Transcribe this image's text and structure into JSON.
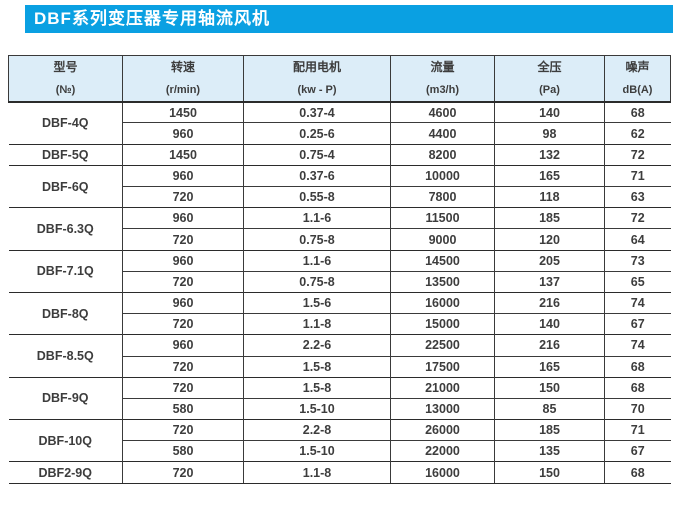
{
  "title": "DBF系列变压器专用轴流风机",
  "colors": {
    "title_bg": "#0aa0e2",
    "header_bg": "#dcedf8",
    "border": "#2b2b2b",
    "text": "#3d3d3d"
  },
  "table": {
    "headers": [
      {
        "line1": "型号",
        "line2": "(№)"
      },
      {
        "line1": "转速",
        "line2": "(r/min)"
      },
      {
        "line1": "配用电机",
        "line2": "(kw - P)"
      },
      {
        "line1": "流量",
        "line2": "(m3/h)"
      },
      {
        "line1": "全压",
        "line2": "(Pa)"
      },
      {
        "line1": "噪声",
        "line2": "dB(A)"
      }
    ],
    "groups": [
      {
        "model": "DBF-4Q",
        "rows": [
          [
            "1450",
            "0.37-4",
            "4600",
            "140",
            "68"
          ],
          [
            "960",
            "0.25-6",
            "4400",
            "98",
            "62"
          ]
        ]
      },
      {
        "model": "DBF-5Q",
        "rows": [
          [
            "1450",
            "0.75-4",
            "8200",
            "132",
            "72"
          ]
        ]
      },
      {
        "model": "DBF-6Q",
        "rows": [
          [
            "960",
            "0.37-6",
            "10000",
            "165",
            "71"
          ],
          [
            "720",
            "0.55-8",
            "7800",
            "118",
            "63"
          ]
        ]
      },
      {
        "model": "DBF-6.3Q",
        "rows": [
          [
            "960",
            "1.1-6",
            "11500",
            "185",
            "72"
          ],
          [
            "720",
            "0.75-8",
            "9000",
            "120",
            "64"
          ]
        ]
      },
      {
        "model": "DBF-7.1Q",
        "rows": [
          [
            "960",
            "1.1-6",
            "14500",
            "205",
            "73"
          ],
          [
            "720",
            "0.75-8",
            "13500",
            "137",
            "65"
          ]
        ]
      },
      {
        "model": "DBF-8Q",
        "rows": [
          [
            "960",
            "1.5-6",
            "16000",
            "216",
            "74"
          ],
          [
            "720",
            "1.1-8",
            "15000",
            "140",
            "67"
          ]
        ]
      },
      {
        "model": "DBF-8.5Q",
        "rows": [
          [
            "960",
            "2.2-6",
            "22500",
            "216",
            "74"
          ],
          [
            "720",
            "1.5-8",
            "17500",
            "165",
            "68"
          ]
        ]
      },
      {
        "model": "DBF-9Q",
        "rows": [
          [
            "720",
            "1.5-8",
            "21000",
            "150",
            "68"
          ],
          [
            "580",
            "1.5-10",
            "13000",
            "85",
            "70"
          ]
        ]
      },
      {
        "model": "DBF-10Q",
        "rows": [
          [
            "720",
            "2.2-8",
            "26000",
            "185",
            "71"
          ],
          [
            "580",
            "1.5-10",
            "22000",
            "135",
            "67"
          ]
        ]
      },
      {
        "model": "DBF2-9Q",
        "rows": [
          [
            "720",
            "1.1-8",
            "16000",
            "150",
            "68"
          ]
        ]
      }
    ]
  }
}
